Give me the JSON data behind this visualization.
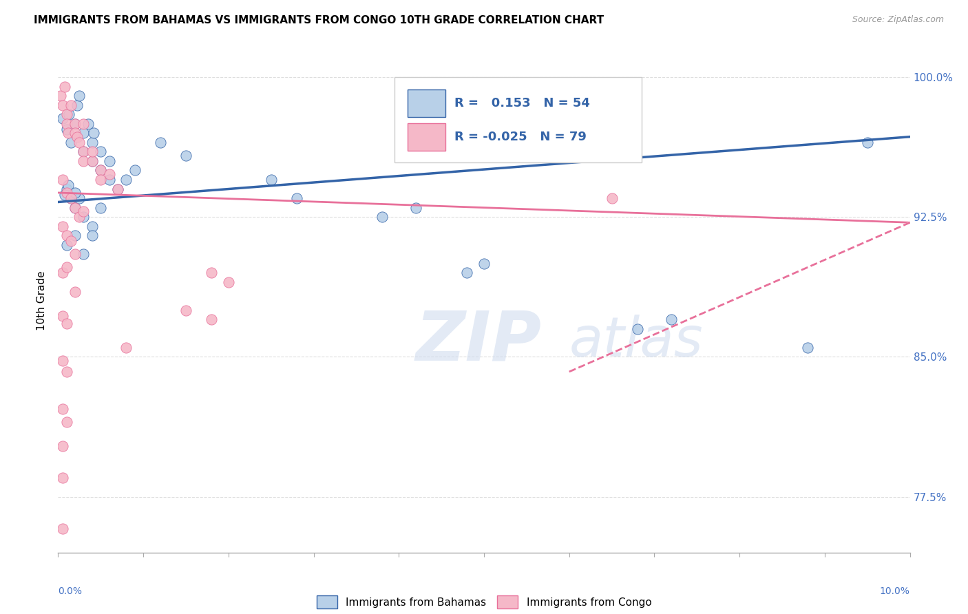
{
  "title": "IMMIGRANTS FROM BAHAMAS VS IMMIGRANTS FROM CONGO 10TH GRADE CORRELATION CHART",
  "source": "Source: ZipAtlas.com",
  "ylabel": "10th Grade",
  "ytick_labels": [
    "77.5%",
    "85.0%",
    "92.5%",
    "100.0%"
  ],
  "ytick_values": [
    0.775,
    0.85,
    0.925,
    1.0
  ],
  "xlim": [
    0.0,
    0.1
  ],
  "ylim": [
    0.745,
    1.015
  ],
  "legend_blue_R_val": "0.153",
  "legend_blue_N": "N = 54",
  "legend_pink_R_val": "-0.025",
  "legend_pink_N": "N = 79",
  "legend_label_blue": "Immigrants from Bahamas",
  "legend_label_pink": "Immigrants from Congo",
  "blue_scatter_x": [
    0.0005,
    0.001,
    0.0013,
    0.0015,
    0.002,
    0.0022,
    0.0025,
    0.003,
    0.003,
    0.0035,
    0.004,
    0.004,
    0.0042,
    0.005,
    0.005,
    0.006,
    0.006,
    0.007,
    0.008,
    0.009,
    0.001,
    0.0015,
    0.002,
    0.0025,
    0.003,
    0.004,
    0.005,
    0.001,
    0.002,
    0.003,
    0.004,
    0.0008,
    0.0012,
    0.002,
    0.012,
    0.015,
    0.025,
    0.028,
    0.038,
    0.042,
    0.048,
    0.05,
    0.068,
    0.072,
    0.088,
    0.095
  ],
  "blue_scatter_y": [
    0.978,
    0.972,
    0.98,
    0.965,
    0.975,
    0.985,
    0.99,
    0.96,
    0.97,
    0.975,
    0.955,
    0.965,
    0.97,
    0.96,
    0.95,
    0.945,
    0.955,
    0.94,
    0.945,
    0.95,
    0.94,
    0.935,
    0.93,
    0.935,
    0.925,
    0.92,
    0.93,
    0.91,
    0.915,
    0.905,
    0.915,
    0.937,
    0.942,
    0.938,
    0.965,
    0.958,
    0.945,
    0.935,
    0.925,
    0.93,
    0.895,
    0.9,
    0.865,
    0.87,
    0.855,
    0.965
  ],
  "pink_scatter_x": [
    0.0003,
    0.0005,
    0.0008,
    0.001,
    0.001,
    0.0012,
    0.0015,
    0.002,
    0.002,
    0.0022,
    0.0025,
    0.003,
    0.003,
    0.003,
    0.004,
    0.004,
    0.005,
    0.005,
    0.006,
    0.007,
    0.0005,
    0.001,
    0.0015,
    0.002,
    0.0025,
    0.003,
    0.0005,
    0.001,
    0.0015,
    0.002,
    0.0005,
    0.001,
    0.002,
    0.0005,
    0.001,
    0.0005,
    0.001,
    0.0005,
    0.001,
    0.0005,
    0.0005,
    0.0005,
    0.018,
    0.02,
    0.015,
    0.018,
    0.008,
    0.065
  ],
  "pink_scatter_y": [
    0.99,
    0.985,
    0.995,
    0.98,
    0.975,
    0.97,
    0.985,
    0.975,
    0.97,
    0.968,
    0.965,
    0.975,
    0.96,
    0.955,
    0.955,
    0.96,
    0.95,
    0.945,
    0.948,
    0.94,
    0.945,
    0.938,
    0.935,
    0.93,
    0.925,
    0.928,
    0.92,
    0.915,
    0.912,
    0.905,
    0.895,
    0.898,
    0.885,
    0.872,
    0.868,
    0.848,
    0.842,
    0.822,
    0.815,
    0.802,
    0.785,
    0.758,
    0.895,
    0.89,
    0.875,
    0.87,
    0.855,
    0.935
  ],
  "blue_line_x": [
    0.0,
    0.1
  ],
  "blue_line_y": [
    0.933,
    0.968
  ],
  "pink_line_x": [
    0.0,
    0.1
  ],
  "pink_line_y": [
    0.938,
    0.922
  ],
  "blue_color": "#b8d0e8",
  "blue_line_color": "#3464a8",
  "pink_color": "#f5b8c8",
  "pink_line_color": "#e8709a",
  "scatter_size": 120,
  "title_fontsize": 11,
  "tick_label_color": "#4472c4",
  "grid_color": "#dddddd",
  "watermark_zip": "ZIP",
  "watermark_atlas": "atlas"
}
